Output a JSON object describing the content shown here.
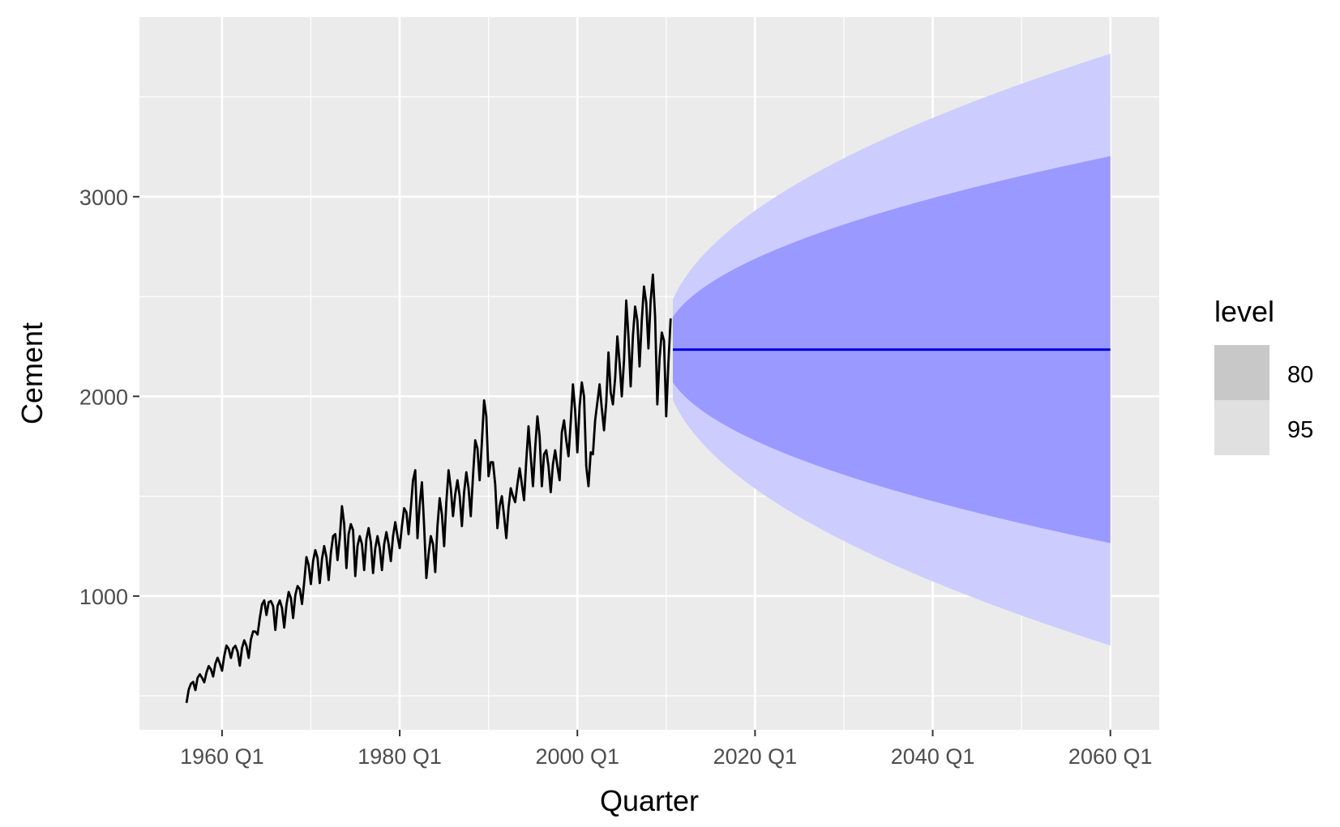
{
  "chart_data": {
    "type": "line",
    "xlabel": "Quarter",
    "ylabel": "Cement",
    "xlim": [
      1950.7,
      2065.5
    ],
    "ylim": [
      330,
      3900
    ],
    "x_ticks": [
      1960,
      1980,
      2000,
      2020,
      2040,
      2060
    ],
    "x_tick_labels": [
      "1960 Q1",
      "1980 Q1",
      "2000 Q1",
      "2020 Q1",
      "2040 Q1",
      "2060 Q1"
    ],
    "x_minor_ticks": [
      1970,
      1990,
      2010,
      2030,
      2050
    ],
    "y_ticks": [
      1000,
      2000,
      3000
    ],
    "y_tick_labels": [
      "1000",
      "2000",
      "3000"
    ],
    "y_minor_ticks": [
      500,
      1500,
      2500,
      3500
    ],
    "grid": true,
    "legend_placement": "right",
    "legend": {
      "title": "level",
      "entries": [
        {
          "label": "80",
          "color": "#c8c8c8"
        },
        {
          "label": "95",
          "color": "#e0e0e0"
        }
      ]
    },
    "colors": {
      "panel": "#ebebeb",
      "grid": "#ffffff",
      "history_line": "#000000",
      "forecast_line": "#0000e0",
      "band_80": "#9999ff",
      "band_95": "#ccccff"
    },
    "series": [
      {
        "name": "Cement",
        "kind": "history",
        "x_start": 1956.0,
        "x_step": 0.25,
        "values": [
          465,
          532,
          561,
          570,
          529,
          591,
          608,
          590,
          568,
          617,
          649,
          633,
          597,
          661,
          691,
          662,
          626,
          700,
          752,
          735,
          690,
          738,
          751,
          721,
          651,
          740,
          778,
          750,
          690,
          783,
          823,
          822,
          807,
          890,
          958,
          978,
          905,
          969,
          975,
          950,
          830,
          950,
          978,
          940,
          842,
          955,
          1020,
          990,
          890,
          1005,
          1050,
          1035,
          960,
          1070,
          1195,
          1155,
          1060,
          1175,
          1230,
          1190,
          1065,
          1185,
          1250,
          1195,
          1080,
          1215,
          1300,
          1310,
          1180,
          1290,
          1450,
          1360,
          1140,
          1310,
          1360,
          1330,
          1100,
          1250,
          1300,
          1260,
          1130,
          1285,
          1340,
          1270,
          1115,
          1240,
          1300,
          1240,
          1130,
          1260,
          1320,
          1260,
          1175,
          1300,
          1370,
          1300,
          1240,
          1350,
          1440,
          1420,
          1310,
          1440,
          1580,
          1630,
          1290,
          1460,
          1570,
          1350,
          1090,
          1210,
          1300,
          1260,
          1120,
          1350,
          1490,
          1410,
          1250,
          1470,
          1630,
          1540,
          1400,
          1510,
          1580,
          1500,
          1350,
          1520,
          1620,
          1540,
          1400,
          1600,
          1780,
          1740,
          1580,
          1770,
          1980,
          1900,
          1600,
          1670,
          1670,
          1560,
          1340,
          1450,
          1500,
          1400,
          1290,
          1440,
          1540,
          1500,
          1470,
          1560,
          1640,
          1560,
          1480,
          1680,
          1850,
          1700,
          1550,
          1740,
          1900,
          1800,
          1550,
          1710,
          1730,
          1650,
          1520,
          1660,
          1730,
          1650,
          1580,
          1820,
          1880,
          1780,
          1700,
          1870,
          2060,
          1930,
          1720,
          1950,
          2070,
          2000,
          1650,
          1550,
          1720,
          1710,
          1880,
          1970,
          2060,
          1940,
          1830,
          1970,
          2220,
          2020,
          1960,
          2090,
          2300,
          2170,
          2000,
          2180,
          2480,
          2300,
          2050,
          2300,
          2450,
          2380,
          2150,
          2380,
          2550,
          2470,
          2240,
          2480,
          2610,
          2400,
          1960,
          2190,
          2320,
          2280,
          1900,
          2170,
          2390
        ]
      },
      {
        "name": "Forecast",
        "kind": "forecast",
        "x_start": 2010.75,
        "x_end": 2060.0,
        "point": 2234,
        "lo80_start": 2070,
        "hi80_start": 2398,
        "lo95_start": 1983,
        "hi95_start": 2485,
        "lo80_end": 1265,
        "hi80_end": 3203,
        "lo95_end": 752,
        "hi95_end": 3716
      }
    ]
  }
}
